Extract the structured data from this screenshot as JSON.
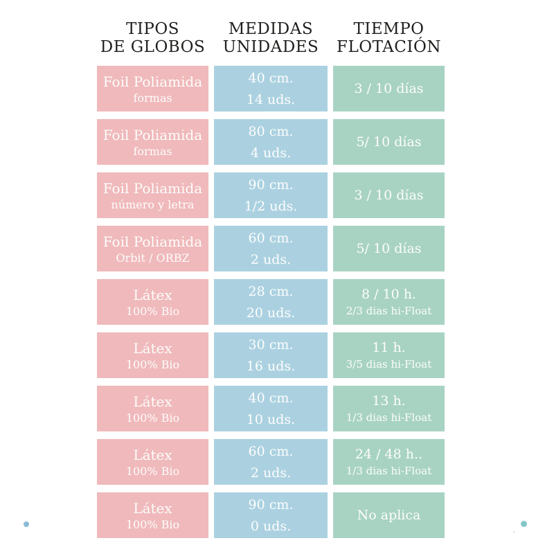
{
  "colors": {
    "background": "#ffffff",
    "tipo_cell": "#f0b9bb",
    "medida_cell": "#abd1e1",
    "tiempo_cell": "#a8d3c3",
    "header_text": "#1f1f1d",
    "cell_text": "#fdfdfc",
    "dot_left": "#8abcd8",
    "dot_right": "#85c7c8"
  },
  "decorations": {
    "dot_left": "small-blue-dot",
    "dot_right": "small-teal-dot",
    "speck": "tiny-gray-speck"
  },
  "chart_data": {
    "type": "table",
    "title": "",
    "columns": [
      {
        "id": "tipos",
        "line1": "TIPOS",
        "line2": "DE GLOBOS"
      },
      {
        "id": "medidas",
        "line1": "MEDIDAS",
        "line2": "UNIDADES"
      },
      {
        "id": "tiempo",
        "line1": "TIEMPO",
        "line2": "FLOTACIÓN"
      }
    ],
    "rows": [
      {
        "tipo": {
          "l1": "Foil Poliamida",
          "l2": "formas"
        },
        "medida": {
          "l1": "40 cm.",
          "l2": "14 uds."
        },
        "tiempo": {
          "l1": "3 / 10 días",
          "l2": ""
        }
      },
      {
        "tipo": {
          "l1": "Foil Poliamida",
          "l2": "formas"
        },
        "medida": {
          "l1": "80 cm.",
          "l2": "4 uds."
        },
        "tiempo": {
          "l1": "5/ 10 días",
          "l2": ""
        }
      },
      {
        "tipo": {
          "l1": "Foil Poliamida",
          "l2": "número y letra"
        },
        "medida": {
          "l1": "90 cm.",
          "l2": "1/2 uds."
        },
        "tiempo": {
          "l1": "3 / 10 días",
          "l2": ""
        }
      },
      {
        "tipo": {
          "l1": "Foil Poliamida",
          "l2": "Orbit / ORBZ"
        },
        "medida": {
          "l1": "60 cm.",
          "l2": "2 uds."
        },
        "tiempo": {
          "l1": "5/ 10 días",
          "l2": ""
        }
      },
      {
        "tipo": {
          "l1": "Látex",
          "l2": "100% Bio"
        },
        "medida": {
          "l1": "28 cm.",
          "l2": "20 uds."
        },
        "tiempo": {
          "l1": "8 / 10 h.",
          "l2": "2/3 dias hi-Float"
        }
      },
      {
        "tipo": {
          "l1": "Látex",
          "l2": "100% Bio"
        },
        "medida": {
          "l1": "30 cm.",
          "l2": "16 uds."
        },
        "tiempo": {
          "l1": "11 h.",
          "l2": "3/5 dias hi-Float"
        }
      },
      {
        "tipo": {
          "l1": "Látex",
          "l2": "100% Bio"
        },
        "medida": {
          "l1": "40 cm.",
          "l2": "10 uds."
        },
        "tiempo": {
          "l1": "13 h.",
          "l2": "1/3 dias hi-Float"
        }
      },
      {
        "tipo": {
          "l1": "Látex",
          "l2": "100% Bio"
        },
        "medida": {
          "l1": "60 cm.",
          "l2": "2 uds."
        },
        "tiempo": {
          "l1": "24 / 48 h..",
          "l2": "1/3 dias hi-Float"
        }
      },
      {
        "tipo": {
          "l1": "Látex",
          "l2": "100% Bio"
        },
        "medida": {
          "l1": "90 cm.",
          "l2": "0 uds."
        },
        "tiempo": {
          "l1": "No aplica",
          "l2": ""
        }
      }
    ]
  }
}
